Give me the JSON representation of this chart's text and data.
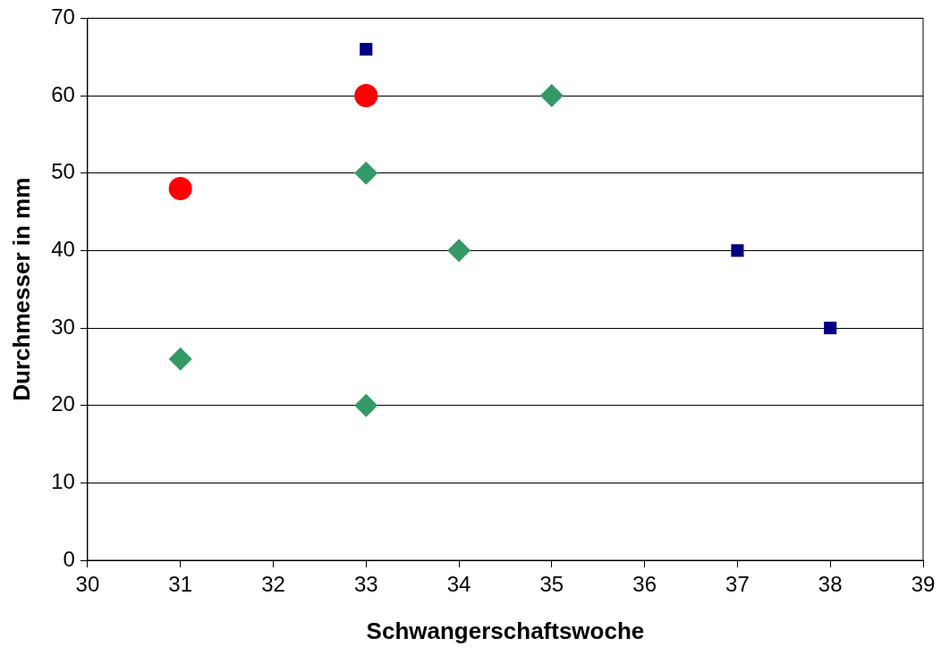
{
  "chart_data": {
    "type": "scatter",
    "xlabel": "Schwangerschaftswoche",
    "ylabel": "Durchmesser in mm",
    "xlim": [
      30,
      39
    ],
    "xticks": [
      30,
      31,
      32,
      33,
      34,
      35,
      36,
      37,
      38,
      39
    ],
    "ylim": [
      0,
      70
    ],
    "yticks": [
      0,
      10,
      20,
      30,
      40,
      50,
      60,
      70
    ],
    "grid": "y",
    "legend": false,
    "series": [
      {
        "color": "#000080",
        "marker": "square",
        "x": [
          33,
          37,
          38
        ],
        "values": [
          66,
          40,
          30
        ]
      },
      {
        "color": "#ff0000",
        "marker": "circle",
        "x": [
          31,
          33
        ],
        "values": [
          48,
          60
        ]
      },
      {
        "color": "#339966",
        "marker": "diamond",
        "x": [
          31,
          33,
          33,
          34,
          35
        ],
        "values": [
          26,
          20,
          50,
          40,
          60
        ]
      }
    ]
  }
}
